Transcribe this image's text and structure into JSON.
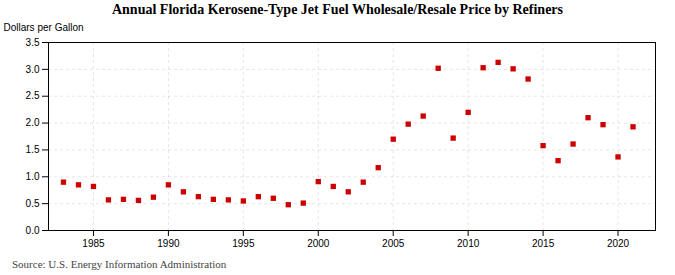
{
  "chart_data": {
    "type": "scatter",
    "title": "Annual Florida Kerosene-Type Jet Fuel Wholesale/Resale Price by Refiners",
    "ylabel": "Dollars per Gallon",
    "source": "Source: U.S. Energy Information Administration",
    "x": [
      1983,
      1984,
      1985,
      1986,
      1987,
      1988,
      1989,
      1990,
      1991,
      1992,
      1993,
      1994,
      1995,
      1996,
      1997,
      1998,
      1999,
      2000,
      2001,
      2002,
      2003,
      2004,
      2005,
      2006,
      2007,
      2008,
      2009,
      2010,
      2011,
      2012,
      2013,
      2014,
      2015,
      2016,
      2017,
      2018,
      2019,
      2020,
      2021
    ],
    "values": [
      0.9,
      0.85,
      0.82,
      0.57,
      0.58,
      0.56,
      0.62,
      0.85,
      0.72,
      0.63,
      0.58,
      0.57,
      0.55,
      0.63,
      0.6,
      0.48,
      0.51,
      0.91,
      0.82,
      0.72,
      0.9,
      1.17,
      1.7,
      1.98,
      2.13,
      3.02,
      1.72,
      2.2,
      3.03,
      3.13,
      3.01,
      2.82,
      1.58,
      1.3,
      1.61,
      2.1,
      1.97,
      1.37,
      1.93
    ],
    "color": "#cc0000",
    "marker": "square",
    "xlim": [
      1982,
      2022.5
    ],
    "xticks": [
      1985,
      1990,
      1995,
      2000,
      2005,
      2010,
      2015,
      2020
    ],
    "ylim": [
      0.0,
      3.5
    ],
    "yticks": [
      {
        "value": 0.0,
        "label": "0.0"
      },
      0.5,
      {
        "value": 1.0,
        "label": "1.0"
      },
      1.5,
      {
        "value": 2.0,
        "label": "2.0"
      },
      2.5,
      {
        "value": 3.0,
        "label": "3.0"
      },
      3.5
    ],
    "grid": true
  }
}
